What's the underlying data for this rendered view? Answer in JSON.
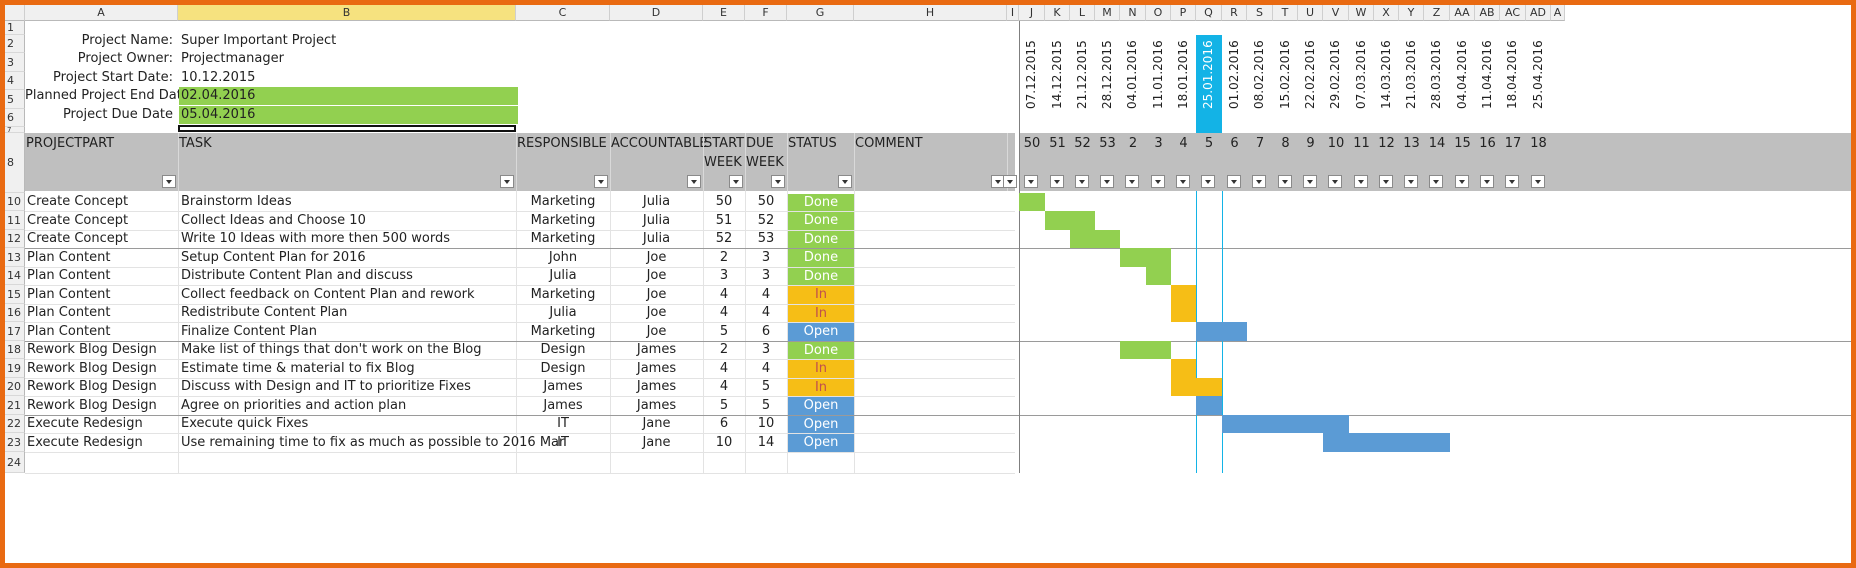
{
  "columns": [
    "A",
    "B",
    "C",
    "D",
    "E",
    "F",
    "G",
    "H",
    "I",
    "J",
    "K",
    "L",
    "M",
    "N",
    "O",
    "P",
    "Q",
    "R",
    "S",
    "T",
    "U",
    "V",
    "W",
    "X",
    "Y",
    "Z",
    "AA",
    "AB",
    "AC",
    "AD",
    "A"
  ],
  "rows": [
    "1",
    "2",
    "3",
    "4",
    "5",
    "6",
    "7",
    "8",
    "10",
    "11",
    "12",
    "13",
    "14",
    "15",
    "16",
    "17",
    "18",
    "19",
    "20",
    "21",
    "22",
    "23",
    "24"
  ],
  "project": {
    "name_label": "Project Name:",
    "name": "Super Important Project",
    "owner_label": "Project Owner:",
    "owner": "Projectmanager",
    "start_label": "Project Start Date:",
    "start": "10.12.2015",
    "planned_end_label": "Planned Project End Date:",
    "planned_end": "02.04.2016",
    "due_label": "Project Due Date",
    "due": "05.04.2016"
  },
  "headers": {
    "projectpart": "PROJECTPART",
    "task": "TASK",
    "responsible": "RESPONSIBLE",
    "accountable": "ACCOUNTABLE",
    "start_1": "START",
    "start_2": "WEEK",
    "due_1": "DUE",
    "due_2": "WEEK",
    "status": "STATUS",
    "comment": "COMMENT"
  },
  "week_dates": [
    "07.12.2015",
    "14.12.2015",
    "21.12.2015",
    "28.12.2015",
    "04.01.2016",
    "11.01.2016",
    "18.01.2016",
    "25.01.2016",
    "01.02.2016",
    "08.02.2016",
    "15.02.2016",
    "22.02.2016",
    "29.02.2016",
    "07.03.2016",
    "14.03.2016",
    "21.03.2016",
    "28.03.2016",
    "04.04.2016",
    "11.04.2016",
    "18.04.2016",
    "25.04.2016"
  ],
  "week_numbers": [
    "50",
    "51",
    "52",
    "53",
    "2",
    "3",
    "4",
    "5",
    "6",
    "7",
    "8",
    "9",
    "10",
    "11",
    "12",
    "13",
    "14",
    "15",
    "16",
    "17",
    "18"
  ],
  "current_week_index": 7,
  "tasks": [
    {
      "part": "Create Concept",
      "task": "Brainstorm Ideas",
      "responsible": "Marketing",
      "accountable": "Julia",
      "start": "50",
      "due": "50",
      "status": "Done"
    },
    {
      "part": "Create Concept",
      "task": "Collect Ideas and Choose 10",
      "responsible": "Marketing",
      "accountable": "Julia",
      "start": "51",
      "due": "52",
      "status": "Done"
    },
    {
      "part": "Create Concept",
      "task": "Write 10 Ideas with more then 500 words",
      "responsible": "Marketing",
      "accountable": "Julia",
      "start": "52",
      "due": "53",
      "status": "Done"
    },
    {
      "part": "Plan Content",
      "task": "Setup Content Plan for 2016",
      "responsible": "John",
      "accountable": "Joe",
      "start": "2",
      "due": "3",
      "status": "Done"
    },
    {
      "part": "Plan Content",
      "task": "Distribute Content Plan and discuss",
      "responsible": "Julia",
      "accountable": "Joe",
      "start": "3",
      "due": "3",
      "status": "Done"
    },
    {
      "part": "Plan Content",
      "task": "Collect feedback on Content Plan and rework",
      "responsible": "Marketing",
      "accountable": "Joe",
      "start": "4",
      "due": "4",
      "status": "In Progress"
    },
    {
      "part": "Plan Content",
      "task": "Redistribute Content Plan",
      "responsible": "Julia",
      "accountable": "Joe",
      "start": "4",
      "due": "4",
      "status": "In Progress"
    },
    {
      "part": "Plan Content",
      "task": "Finalize Content Plan",
      "responsible": "Marketing",
      "accountable": "Joe",
      "start": "5",
      "due": "6",
      "status": "Open"
    },
    {
      "part": "Rework Blog Design",
      "task": "Make list of things that don't work on the Blog",
      "responsible": "Design",
      "accountable": "James",
      "start": "2",
      "due": "3",
      "status": "Done"
    },
    {
      "part": "Rework Blog Design",
      "task": "Estimate time & material to fix Blog",
      "responsible": "Design",
      "accountable": "James",
      "start": "4",
      "due": "4",
      "status": "In Progress"
    },
    {
      "part": "Rework Blog Design",
      "task": "Discuss with Design and IT to prioritize Fixes",
      "responsible": "James",
      "accountable": "James",
      "start": "4",
      "due": "5",
      "status": "In Progress"
    },
    {
      "part": "Rework Blog Design",
      "task": "Agree on priorities and action plan",
      "responsible": "James",
      "accountable": "James",
      "start": "5",
      "due": "5",
      "status": "Open"
    },
    {
      "part": "Execute Redesign",
      "task": "Execute quick Fixes",
      "responsible": "IT",
      "accountable": "Jane",
      "start": "6",
      "due": "10",
      "status": "Open"
    },
    {
      "part": "Execute Redesign",
      "task": "Use remaining time to fix as much as possible to 2016 Mar",
      "responsible": "IT",
      "accountable": "Jane",
      "start": "10",
      "due": "14",
      "status": "Open"
    }
  ],
  "colors": {
    "done": "#92d050",
    "in_progress": "#f6be16",
    "open": "#5b9bd5",
    "current_week": "#13b3e6",
    "header_band": "#bfbfbf",
    "frame": "#e96a12",
    "in_progress_text": "#c0504d"
  }
}
